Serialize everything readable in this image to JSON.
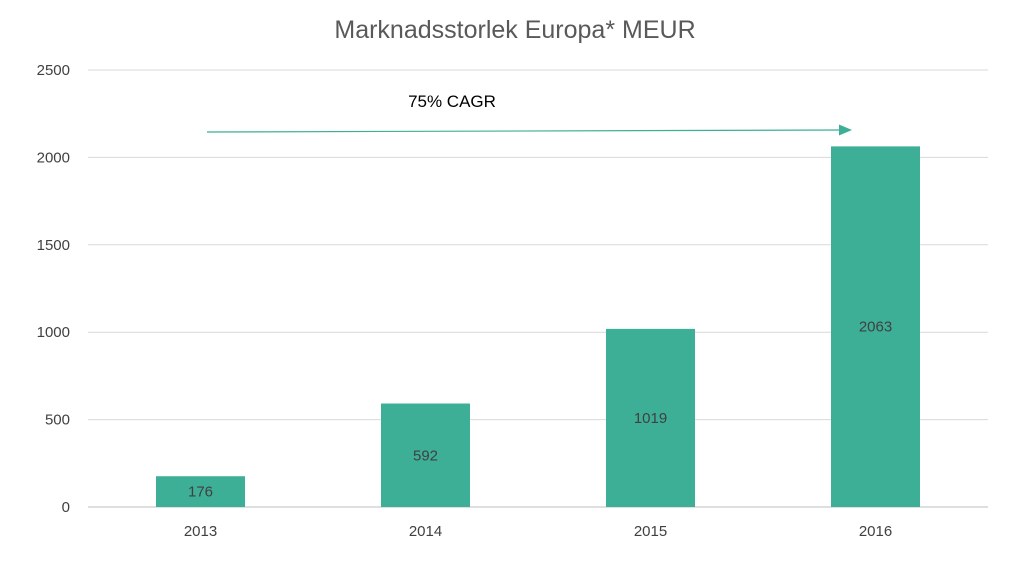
{
  "chart_data": {
    "type": "bar",
    "title": "Marknadsstorlek Europa* MEUR",
    "categories": [
      "2013",
      "2014",
      "2015",
      "2016"
    ],
    "values": [
      176,
      592,
      1019,
      2063
    ],
    "data_labels": [
      "176",
      "592",
      "1019",
      "2063"
    ],
    "ylim": [
      0,
      2500
    ],
    "yticks": [
      0,
      500,
      1000,
      1500,
      2000,
      2500
    ],
    "xlabel": "",
    "ylabel": "",
    "grid": true,
    "legend": "none",
    "bar_color": "#3daf96",
    "annotation": {
      "text": "75% CAGR",
      "arrow_color": "#3daf96"
    }
  }
}
